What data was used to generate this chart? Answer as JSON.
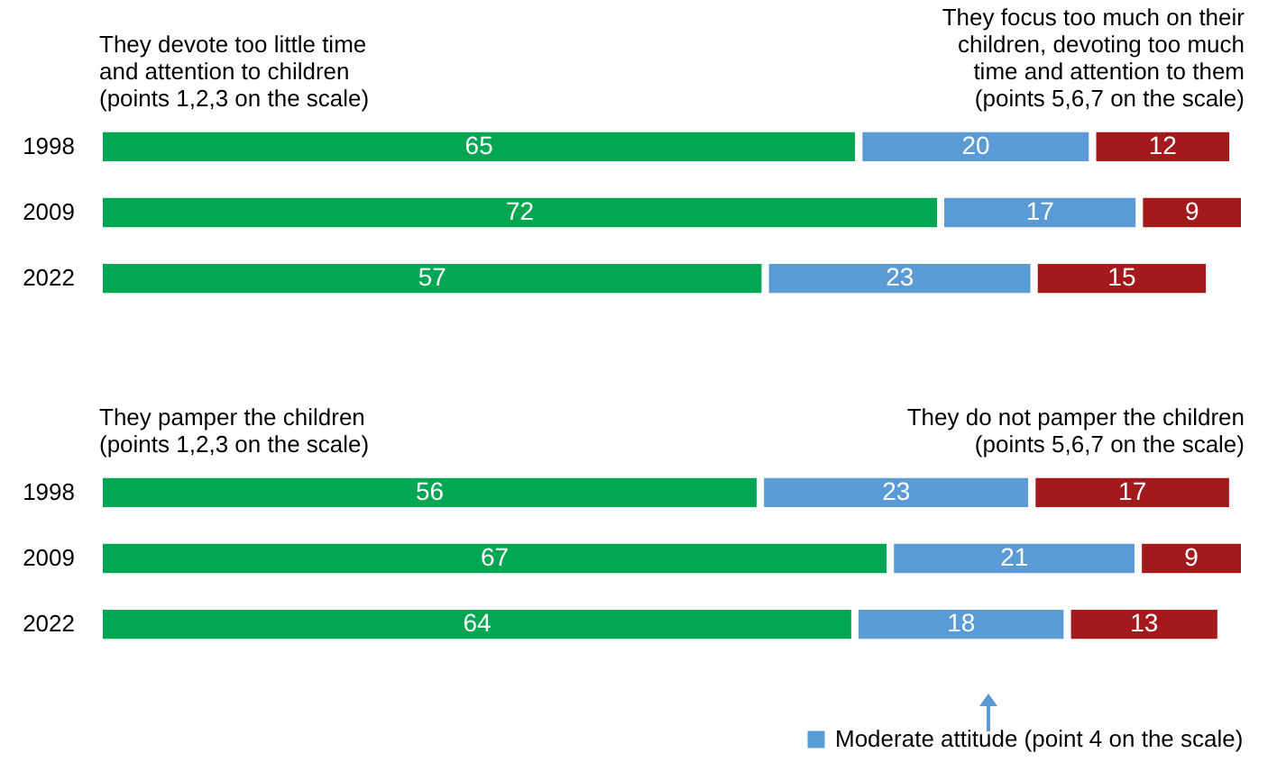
{
  "chart_data": [
    {
      "type": "bar",
      "orientation": "horizontal",
      "stacked": true,
      "data_labels": true,
      "categories": [
        "1998",
        "2009",
        "2022"
      ],
      "series": [
        {
          "name": "They devote too little time\nand attention to children\n(points 1,2,3 on the scale)",
          "color": "#00a651",
          "values": [
            65,
            72,
            57
          ]
        },
        {
          "color": "#5b9bd5",
          "values": [
            20,
            17,
            23
          ]
        },
        {
          "name": "They focus too much on their\nchildren, devoting too much\ntime and attention to them\n(points 5,6,7 on the scale)",
          "color": "#a3191c",
          "values": [
            12,
            9,
            15
          ]
        }
      ]
    },
    {
      "type": "bar",
      "orientation": "horizontal",
      "stacked": true,
      "data_labels": true,
      "legend": "bottom",
      "categories": [
        "1998",
        "2009",
        "2022"
      ],
      "series": [
        {
          "name": "They pamper the children\n(points 1,2,3 on the scale)",
          "color": "#00a651",
          "values": [
            56,
            67,
            64
          ]
        },
        {
          "name": "Moderate attitude (point 4 on the scale)",
          "color": "#5b9bd5",
          "values": [
            23,
            21,
            18
          ]
        },
        {
          "name": "They do not pamper the children\n(points 5,6,7 on the scale)",
          "color": "#a3191c",
          "values": [
            17,
            9,
            13
          ]
        }
      ]
    }
  ]
}
